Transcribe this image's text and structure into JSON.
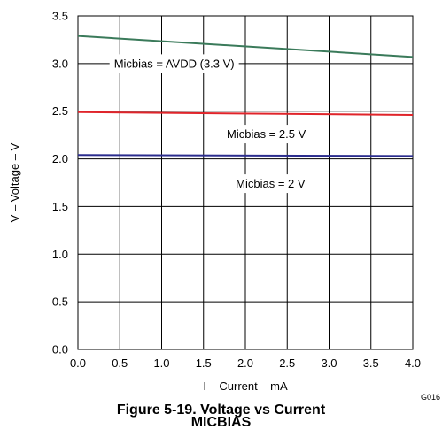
{
  "figure": {
    "caption_line1": "Figure 5-19. Voltage vs Current",
    "caption_line2": "MICBIAS",
    "code": "G016"
  },
  "chart_data": {
    "type": "line",
    "xlabel": "I – Current – mA",
    "ylabel": "V – Voltage – V",
    "xlim": [
      0,
      4
    ],
    "ylim": [
      0,
      3.5
    ],
    "xticks": [
      "0.0",
      "0.5",
      "1.0",
      "1.5",
      "2.0",
      "2.5",
      "3.0",
      "3.5",
      "4.0"
    ],
    "yticks": [
      "0.0",
      "0.5",
      "1.0",
      "1.5",
      "2.0",
      "2.5",
      "3.0",
      "3.5"
    ],
    "grid": true,
    "series": [
      {
        "name": "Micbias = AVDD (3.3 V)",
        "color": "#3a7a5a",
        "x": [
          0,
          4
        ],
        "y": [
          3.29,
          3.07
        ]
      },
      {
        "name": "Micbias = 2.5 V",
        "color": "#e0242a",
        "x": [
          0,
          4
        ],
        "y": [
          2.49,
          2.46
        ]
      },
      {
        "name": "Micbias = 2 V",
        "color": "#2b2d8e",
        "x": [
          0,
          4
        ],
        "y": [
          2.04,
          2.03
        ]
      }
    ]
  }
}
